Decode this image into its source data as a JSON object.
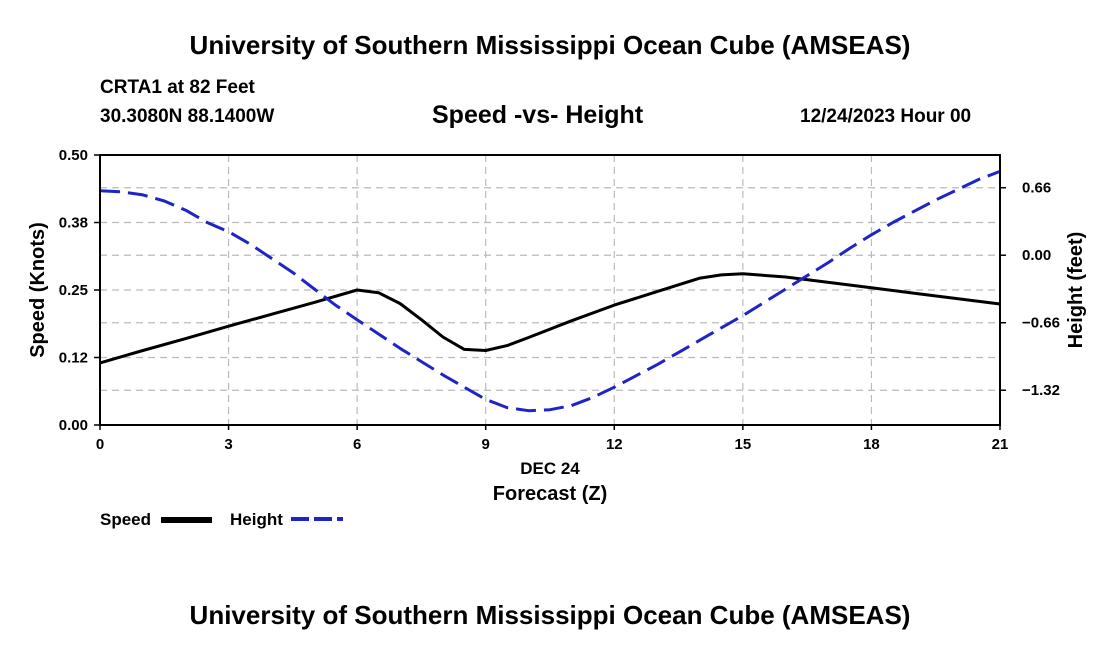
{
  "page": {
    "title_top": "University of Southern Mississippi Ocean Cube (AMSEAS)",
    "title_bottom": "University of Southern Mississippi Ocean Cube (AMSEAS)",
    "station": "CRTA1 at 82 Feet",
    "coords": "30.3080N  88.1400W",
    "date": "12/24/2023 Hour 00"
  },
  "legend": {
    "speed_label": "Speed",
    "height_label": "Height",
    "speed_color": "#000000",
    "height_color": "#1f24c8"
  },
  "chart_data": {
    "type": "line",
    "title": "Speed -vs- Height",
    "xlabel_line1": "DEC 24",
    "xlabel_line2": "Forecast (Z)",
    "ylabel": "Speed (Knots)",
    "y2label": "Height (feet)",
    "xlim": [
      0,
      21
    ],
    "ylim": [
      0,
      0.5
    ],
    "y2lim": [
      -1.66,
      0.98
    ],
    "x_ticks": [
      0,
      3,
      6,
      9,
      12,
      15,
      18,
      21
    ],
    "x_tick_labels": [
      "0",
      "3",
      "6",
      "9",
      "12",
      "15",
      "18",
      "21"
    ],
    "y_ticks": [
      0,
      0.125,
      0.25,
      0.375,
      0.5
    ],
    "y_tick_labels": [
      "0.00",
      "0.12",
      "0.25",
      "0.38",
      "0.50"
    ],
    "y2_ticks": [
      0.66,
      0,
      -0.66,
      -1.32
    ],
    "y2_tick_labels": [
      "0.66",
      "0.00",
      "−0.66",
      "−1.32"
    ],
    "grid": true,
    "legend_position": "bottom-left",
    "series": [
      {
        "name": "Speed",
        "axis": "left",
        "style": "solid",
        "color": "#000000",
        "x": [
          0,
          1,
          2,
          3,
          4,
          5,
          6,
          6.5,
          7,
          7.5,
          8,
          8.5,
          9,
          9.5,
          10,
          11,
          12,
          13,
          14,
          14.5,
          15,
          16,
          17,
          18,
          19,
          20,
          21
        ],
        "y": [
          0.115,
          0.138,
          0.16,
          0.183,
          0.205,
          0.227,
          0.25,
          0.245,
          0.225,
          0.195,
          0.163,
          0.14,
          0.138,
          0.147,
          0.162,
          0.193,
          0.222,
          0.247,
          0.272,
          0.278,
          0.28,
          0.274,
          0.264,
          0.254,
          0.244,
          0.234,
          0.224
        ]
      },
      {
        "name": "Height",
        "axis": "right",
        "style": "dashed",
        "color": "#1f24c8",
        "x": [
          0,
          0.5,
          1,
          1.5,
          2,
          2.5,
          3,
          3.5,
          4,
          4.5,
          5,
          5.5,
          6,
          6.5,
          7,
          7.5,
          8,
          8.5,
          9,
          9.5,
          10,
          10.5,
          11,
          11.5,
          12,
          12.5,
          13,
          13.5,
          14,
          14.5,
          15,
          15.5,
          16,
          16.5,
          17,
          17.5,
          18,
          18.5,
          19,
          19.5,
          20,
          20.5,
          21
        ],
        "y": [
          0.63,
          0.62,
          0.59,
          0.53,
          0.44,
          0.32,
          0.23,
          0.11,
          -0.03,
          -0.17,
          -0.33,
          -0.49,
          -0.63,
          -0.77,
          -0.91,
          -1.04,
          -1.17,
          -1.29,
          -1.41,
          -1.49,
          -1.52,
          -1.51,
          -1.47,
          -1.39,
          -1.29,
          -1.18,
          -1.07,
          -0.95,
          -0.83,
          -0.71,
          -0.59,
          -0.46,
          -0.33,
          -0.2,
          -0.07,
          0.07,
          0.2,
          0.32,
          0.43,
          0.54,
          0.64,
          0.74,
          0.82
        ]
      }
    ]
  }
}
